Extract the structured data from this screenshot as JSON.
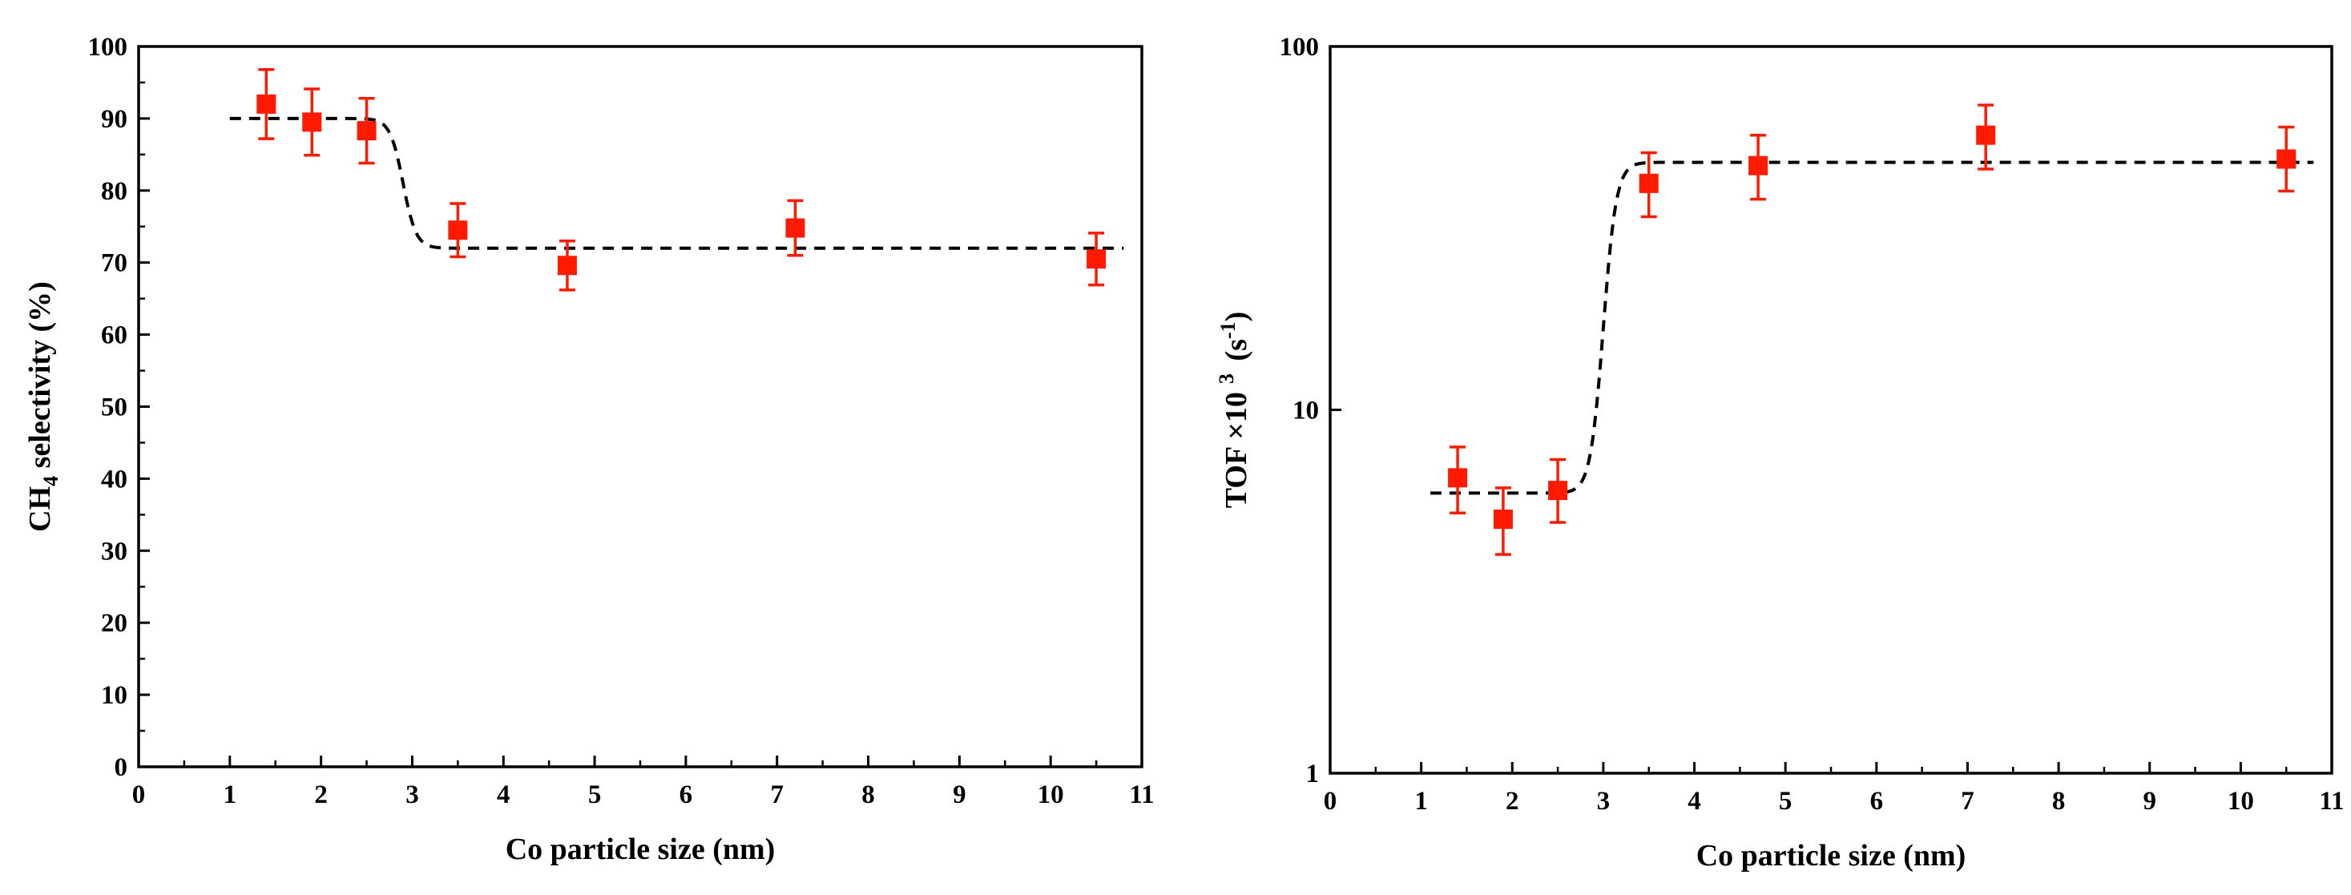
{
  "chart_data": [
    {
      "type": "scatter",
      "xlabel": "Co particle size (nm)",
      "ylabel_parts": {
        "main": "CH",
        "sub": "4",
        "rest": " selectivity (%)"
      },
      "xlim": [
        0,
        11
      ],
      "ylim": [
        0,
        100
      ],
      "yscale": "linear",
      "xticks": [
        0,
        1,
        2,
        3,
        4,
        5,
        6,
        7,
        8,
        9,
        10,
        11
      ],
      "yticks": [
        0,
        10,
        20,
        30,
        40,
        50,
        60,
        70,
        80,
        90,
        100
      ],
      "marker_color": "#ff1a00",
      "series": [
        {
          "name": "CH4 selectivity",
          "x": [
            1.4,
            1.9,
            2.5,
            3.5,
            4.7,
            7.2,
            10.5
          ],
          "y": [
            92,
            89.5,
            88.3,
            74.5,
            69.6,
            74.8,
            70.5
          ],
          "err": [
            4.8,
            4.6,
            4.5,
            3.7,
            3.4,
            3.8,
            3.6
          ]
        }
      ],
      "trend": {
        "style": "dashed",
        "color": "#000000",
        "low_level": 72,
        "high_level": 90,
        "x_start": 1.0,
        "x_step": 2.9,
        "x_end": 10.8,
        "direction": "down"
      }
    },
    {
      "type": "scatter",
      "xlabel": "Co particle size (nm)",
      "ylabel_parts": {
        "main": "TOF ×10",
        "sup": "3",
        "rest": " (s",
        "sup2": "-1",
        "close": ")"
      },
      "xlim": [
        0,
        11
      ],
      "ylim": [
        1,
        100
      ],
      "yscale": "log",
      "xticks": [
        0,
        1,
        2,
        3,
        4,
        5,
        6,
        7,
        8,
        9,
        10,
        11
      ],
      "yticks": [
        1,
        10,
        100
      ],
      "marker_color": "#ff1a00",
      "series": [
        {
          "name": "TOF",
          "x": [
            1.4,
            1.9,
            2.5,
            3.5,
            4.7,
            7.2,
            10.5
          ],
          "y": [
            6.5,
            5.0,
            6.0,
            42,
            47,
            57,
            49
          ],
          "err_low": [
            5.2,
            4.0,
            4.9,
            34,
            38,
            46,
            40
          ],
          "err_high": [
            7.9,
            6.1,
            7.3,
            51,
            57,
            69,
            60
          ]
        }
      ],
      "trend": {
        "style": "dashed",
        "color": "#000000",
        "low_level": 5.9,
        "high_level": 48,
        "x_start": 1.1,
        "x_step": 3.0,
        "x_end": 10.8,
        "direction": "up"
      }
    }
  ]
}
